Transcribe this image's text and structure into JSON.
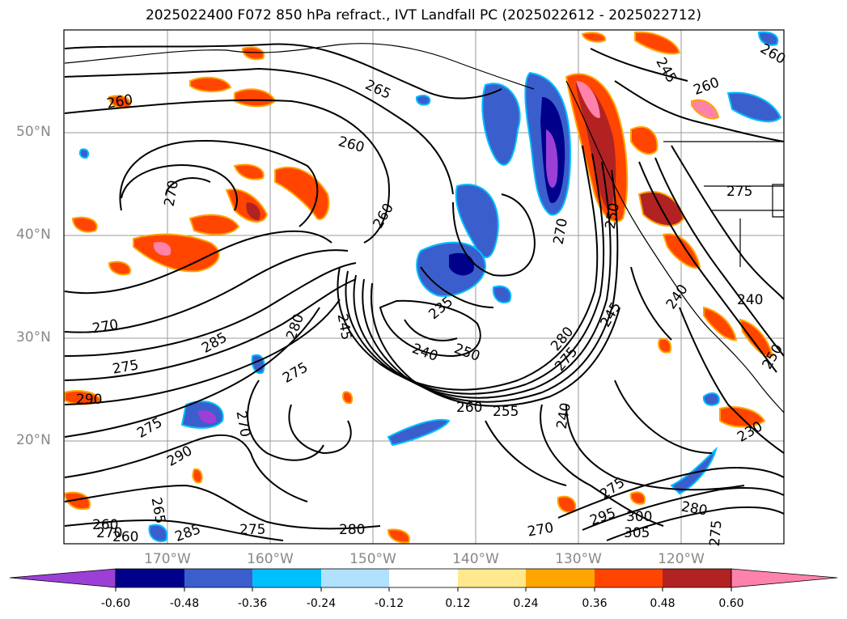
{
  "title": "2025022400 F072 850 hPa refract., IVT Landfall PC (2025022612 - 2025022712)",
  "map": {
    "lat_labels": [
      "50°N",
      "40°N",
      "30°N",
      "20°N"
    ],
    "lon_labels": [
      "170°W",
      "160°W",
      "150°W",
      "140°W",
      "130°W",
      "120°W"
    ],
    "contour_labels": [
      "265",
      "260",
      "260",
      "260",
      "260",
      "270",
      "270",
      "275",
      "285",
      "280",
      "275",
      "290",
      "290",
      "275",
      "270",
      "245",
      "240",
      "250",
      "235",
      "280",
      "275",
      "245",
      "240",
      "260",
      "255",
      "270",
      "275",
      "295",
      "300",
      "305",
      "280",
      "275",
      "270",
      "250",
      "240",
      "230",
      "250",
      "260",
      "270",
      "265",
      "260",
      "245",
      "240",
      "275",
      "260",
      "275",
      "280",
      "285"
    ],
    "shading": "IVT landfall principal component (red/pink positive, blue/purple negative)"
  },
  "colorbar": {
    "colors": [
      "#9b3fd6",
      "#00008b",
      "#3a5fcd",
      "#00bfff",
      "#b0e2ff",
      "#ffffff",
      "#ffe98c",
      "#ffa500",
      "#ff4500",
      "#b22222",
      "#ff82ab"
    ],
    "labels": [
      "-0.60",
      "-0.48",
      "-0.36",
      "-0.24",
      "-0.12",
      "0.12",
      "0.24",
      "0.36",
      "0.48",
      "0.60"
    ]
  }
}
